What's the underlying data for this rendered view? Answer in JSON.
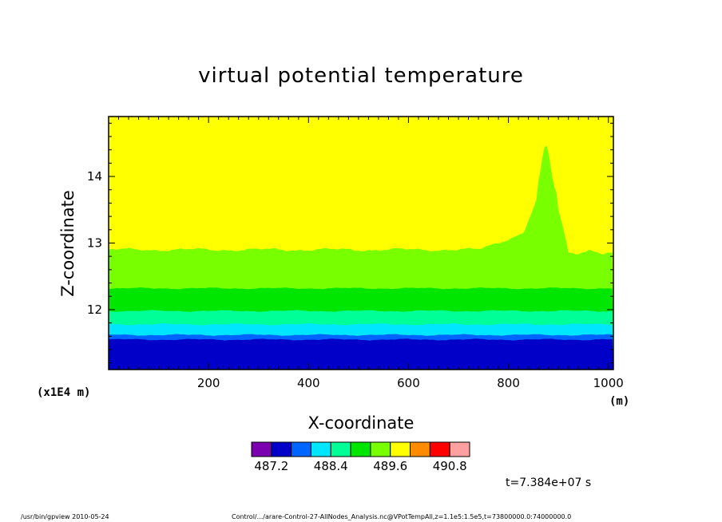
{
  "chart_data": {
    "type": "heatmap",
    "title": "virtual potential temperature",
    "xlabel": "X-coordinate",
    "ylabel": "Z-coordinate",
    "x_unit": "(m)",
    "y_unit": "(x1E4 m)",
    "xlim": [
      0,
      1010
    ],
    "ylim": [
      11.1,
      14.9
    ],
    "x_ticks": [
      200,
      400,
      600,
      800,
      1000
    ],
    "y_ticks": [
      12,
      13,
      14
    ],
    "x_tick_labels": [
      "200",
      "400",
      "600",
      "800",
      "1000"
    ],
    "y_tick_labels": [
      "12",
      "13",
      "14"
    ],
    "contour_levels": [
      487.2,
      487.5,
      487.8,
      488.1,
      488.4,
      488.7,
      489.0,
      489.3,
      489.6,
      489.9,
      490.2,
      490.5,
      490.8
    ],
    "colorbar": {
      "colors": [
        "#7a00b0",
        "#0000c8",
        "#0064ff",
        "#00e6ff",
        "#00ff96",
        "#00e600",
        "#78ff00",
        "#ffff00",
        "#ff8c00",
        "#ff0000",
        "#ffa0a0"
      ],
      "tick_labels": [
        "487.2",
        "488.4",
        "489.6",
        "490.8"
      ]
    },
    "layers": [
      {
        "color": "#0000c8",
        "z_top": 11.55
      },
      {
        "color": "#0064ff",
        "z_top": 11.62
      },
      {
        "color": "#00e6ff",
        "z_top": 11.78
      },
      {
        "color": "#00ff96",
        "z_top": 11.98
      },
      {
        "color": "#00e600",
        "z_top": 12.32
      },
      {
        "color": "#78ff00",
        "z_top": 12.9
      },
      {
        "color": "#ffff00",
        "z_top": 14.9
      }
    ],
    "annotation": "t=7.384e+07 s"
  },
  "footer": {
    "left": "/usr/bin/gpview  2010-05-24",
    "right": "Control/.../arare-Control-27-AllNodes_Analysis.nc@VPotTempAll,z=1.1e5:1.5e5,t=73800000.0:74000000.0"
  }
}
